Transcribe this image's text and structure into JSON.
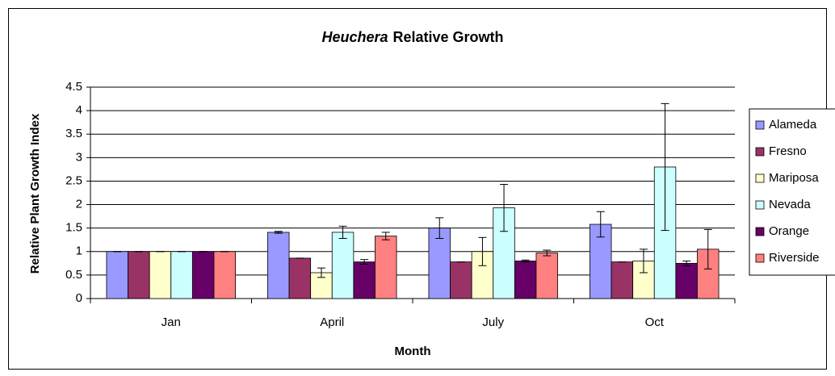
{
  "chart_data": {
    "type": "bar",
    "title": [
      "Heuchera",
      "Relative Growth"
    ],
    "x_label": "Month",
    "y_label": "Relative Plant Growth Index",
    "categories": [
      "Jan",
      "April",
      "July",
      "Oct"
    ],
    "series": [
      {
        "name": "Alameda",
        "color": "#9999ff",
        "values": [
          1,
          1.41,
          1.5,
          1.58
        ],
        "errors": [
          0,
          0.02,
          0.22,
          0.27
        ]
      },
      {
        "name": "Fresno",
        "color": "#993366",
        "values": [
          1,
          0.86,
          0.78,
          0.78
        ],
        "errors": [
          0,
          0,
          0,
          0
        ]
      },
      {
        "name": "Mariposa",
        "color": "#ffffcc",
        "values": [
          1,
          0.55,
          1.0,
          0.8
        ],
        "errors": [
          0,
          0.1,
          0.3,
          0.25
        ]
      },
      {
        "name": "Nevada",
        "color": "#ccffff",
        "values": [
          1,
          1.41,
          1.93,
          2.8
        ],
        "errors": [
          0,
          0.13,
          0.5,
          1.35
        ]
      },
      {
        "name": "Orange",
        "color": "#660066",
        "values": [
          1,
          0.78,
          0.8,
          0.75
        ],
        "errors": [
          0,
          0.05,
          0.02,
          0.05
        ]
      },
      {
        "name": "Riverside",
        "color": "#ff8080",
        "values": [
          1,
          1.33,
          0.97,
          1.05
        ],
        "errors": [
          0,
          0.08,
          0.06,
          0.42
        ]
      }
    ],
    "ylim": [
      0,
      4.5
    ],
    "yticks": [
      0,
      0.5,
      1,
      1.5,
      2,
      2.5,
      3,
      3.5,
      4,
      4.5
    ],
    "grid": true,
    "legend": "right"
  }
}
